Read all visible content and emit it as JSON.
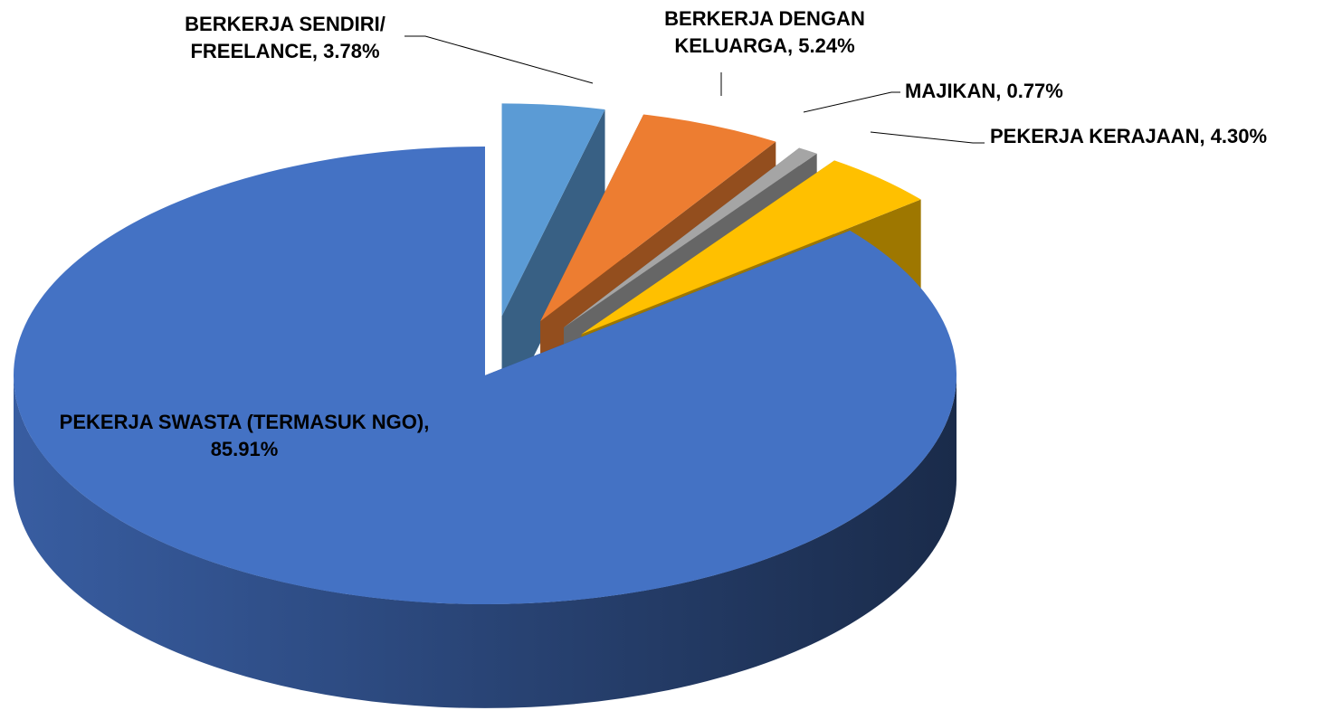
{
  "chart_data": {
    "type": "pie",
    "categories": [
      "BERKERJA SENDIRI/ FREELANCE",
      "BERKERJA DENGAN KELUARGA",
      "MAJIKAN",
      "PEKERJA KERAJAAN",
      "PEKERJA SWASTA (TERMASUK NGO)"
    ],
    "values": [
      3.78,
      5.24,
      0.77,
      4.3,
      85.91
    ],
    "value_labels": [
      "3.78%",
      "5.24%",
      "0.77%",
      "4.30%",
      "85.91%"
    ],
    "label_separator": ", ",
    "colors": [
      "#5b9bd5",
      "#ed7d31",
      "#a5a5a5",
      "#ffc000",
      "#4472c4"
    ]
  }
}
